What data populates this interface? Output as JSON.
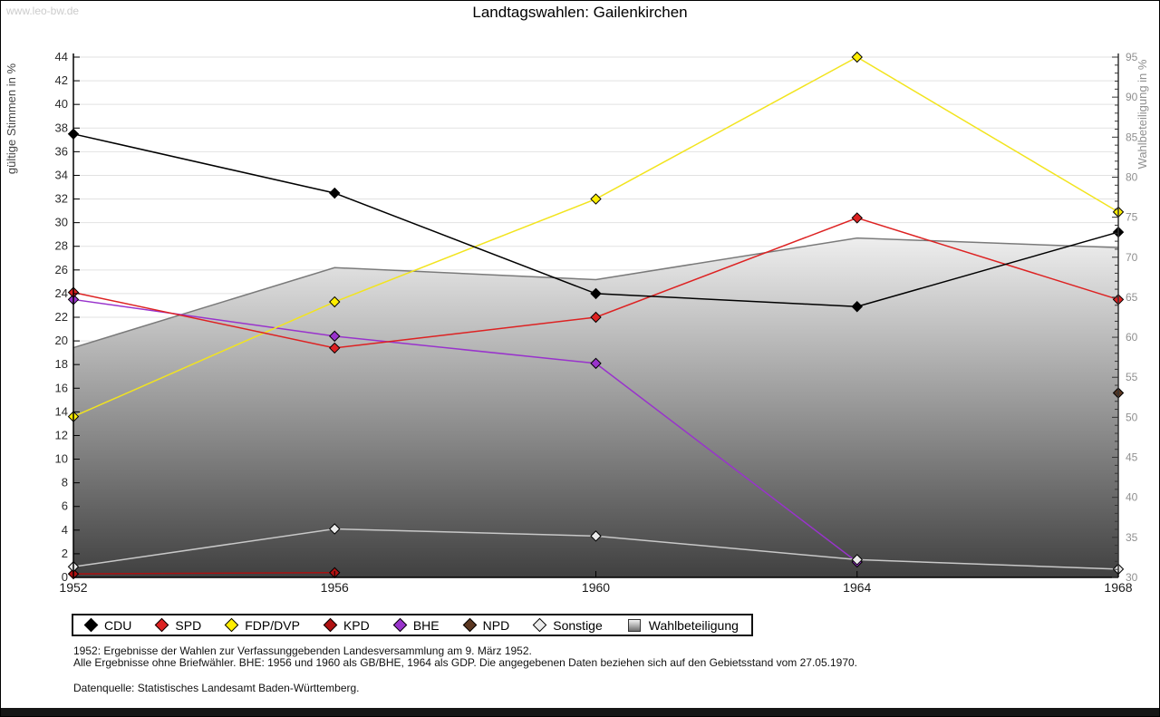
{
  "watermark": "www.leo-bw.de",
  "title": "Landtagswahlen: Gailenkirchen",
  "footnotes": {
    "line1": "1952: Ergebnisse der Wahlen zur Verfassunggebenden Landesversammlung am 9. März 1952.",
    "line2": "Alle Ergebnisse ohne Briefwähler. BHE: 1956 und 1960 als GB/BHE, 1964 als GDP. Die angegebenen Daten beziehen sich auf den Gebietsstand vom 27.05.1970.",
    "source": "Datenquelle: Statistisches Landesamt Baden-Württemberg."
  },
  "chart_data": {
    "type": "line",
    "title": "Landtagswahlen: Gailenkirchen",
    "x": [
      1952,
      1956,
      1960,
      1964,
      1968
    ],
    "x_tick_labels": [
      "1952",
      "1956",
      "1960",
      "1964",
      "1968"
    ],
    "left_axis": {
      "label": "gültige Stimmen in %",
      "min": 0,
      "max": 44,
      "tick_step": 2,
      "label_color": "#444444",
      "tick_label_color": "#2b2b2b"
    },
    "right_axis": {
      "label": "Wahlbeteiligung in %",
      "min": 30,
      "max": 95,
      "tick_step": 5,
      "minor_step": 1,
      "label_color": "#909090",
      "tick_label_color": "#909090"
    },
    "grid": "horizontal-only",
    "grid_color": "#e2e2e2",
    "legend_position": "bottom",
    "area_gradient": {
      "top": "#eeeeee",
      "bottom": "#404040",
      "edge": "#7a7a7a"
    },
    "series": [
      {
        "name": "CDU",
        "kind": "line",
        "axis": "left",
        "color": "#000000",
        "marker": "diamond",
        "marker_fill": "#000000",
        "points": [
          [
            1952,
            37.5
          ],
          [
            1956,
            32.5
          ],
          [
            1960,
            24.0
          ],
          [
            1964,
            22.9
          ],
          [
            1968,
            29.2
          ]
        ]
      },
      {
        "name": "SPD",
        "kind": "line",
        "axis": "left",
        "color": "#dd2222",
        "marker": "diamond",
        "marker_fill": "#dd2222",
        "points": [
          [
            1952,
            24.1
          ],
          [
            1956,
            19.4
          ],
          [
            1960,
            22.0
          ],
          [
            1964,
            30.4
          ],
          [
            1968,
            23.5
          ]
        ]
      },
      {
        "name": "FDP/DVP",
        "kind": "line",
        "axis": "left",
        "color": "#f2e41e",
        "marker": "diamond",
        "marker_fill": "#ffee00",
        "points": [
          [
            1952,
            13.6
          ],
          [
            1956,
            23.3
          ],
          [
            1960,
            32.0
          ],
          [
            1964,
            44.0
          ],
          [
            1968,
            30.9
          ]
        ]
      },
      {
        "name": "KPD",
        "kind": "line",
        "axis": "left",
        "color": "#aa1111",
        "marker": "diamond",
        "marker_fill": "#b01111",
        "points": [
          [
            1952,
            0.3
          ],
          [
            1956,
            0.4
          ]
        ]
      },
      {
        "name": "BHE",
        "kind": "line",
        "axis": "left",
        "color": "#9933cc",
        "marker": "diamond",
        "marker_fill": "#9933cc",
        "points": [
          [
            1952,
            23.5
          ],
          [
            1956,
            20.4
          ],
          [
            1960,
            18.1
          ],
          [
            1964,
            1.3
          ]
        ]
      },
      {
        "name": "NPD",
        "kind": "line",
        "axis": "left",
        "color": "#5b3620",
        "marker": "diamond",
        "marker_fill": "#5b3620",
        "points": [
          [
            1968,
            15.6
          ]
        ]
      },
      {
        "name": "Sonstige",
        "kind": "line",
        "axis": "left",
        "color": "#c8c8c8",
        "marker": "diamond",
        "marker_fill": "#ebebeb",
        "points": [
          [
            1952,
            0.9
          ],
          [
            1956,
            4.1
          ],
          [
            1960,
            3.5
          ],
          [
            1964,
            1.5
          ],
          [
            1968,
            0.7
          ]
        ]
      },
      {
        "name": "Wahlbeteiligung",
        "kind": "area",
        "axis": "right",
        "color": "#7a7a7a",
        "marker": "none",
        "points": [
          [
            1952,
            58.7
          ],
          [
            1956,
            68.7
          ],
          [
            1960,
            67.2
          ],
          [
            1964,
            72.4
          ],
          [
            1968,
            71.2
          ]
        ]
      }
    ],
    "draw_order": [
      "Wahlbeteiligung",
      "KPD",
      "BHE",
      "Sonstige",
      "FDP/DVP",
      "SPD",
      "CDU",
      "NPD"
    ]
  }
}
